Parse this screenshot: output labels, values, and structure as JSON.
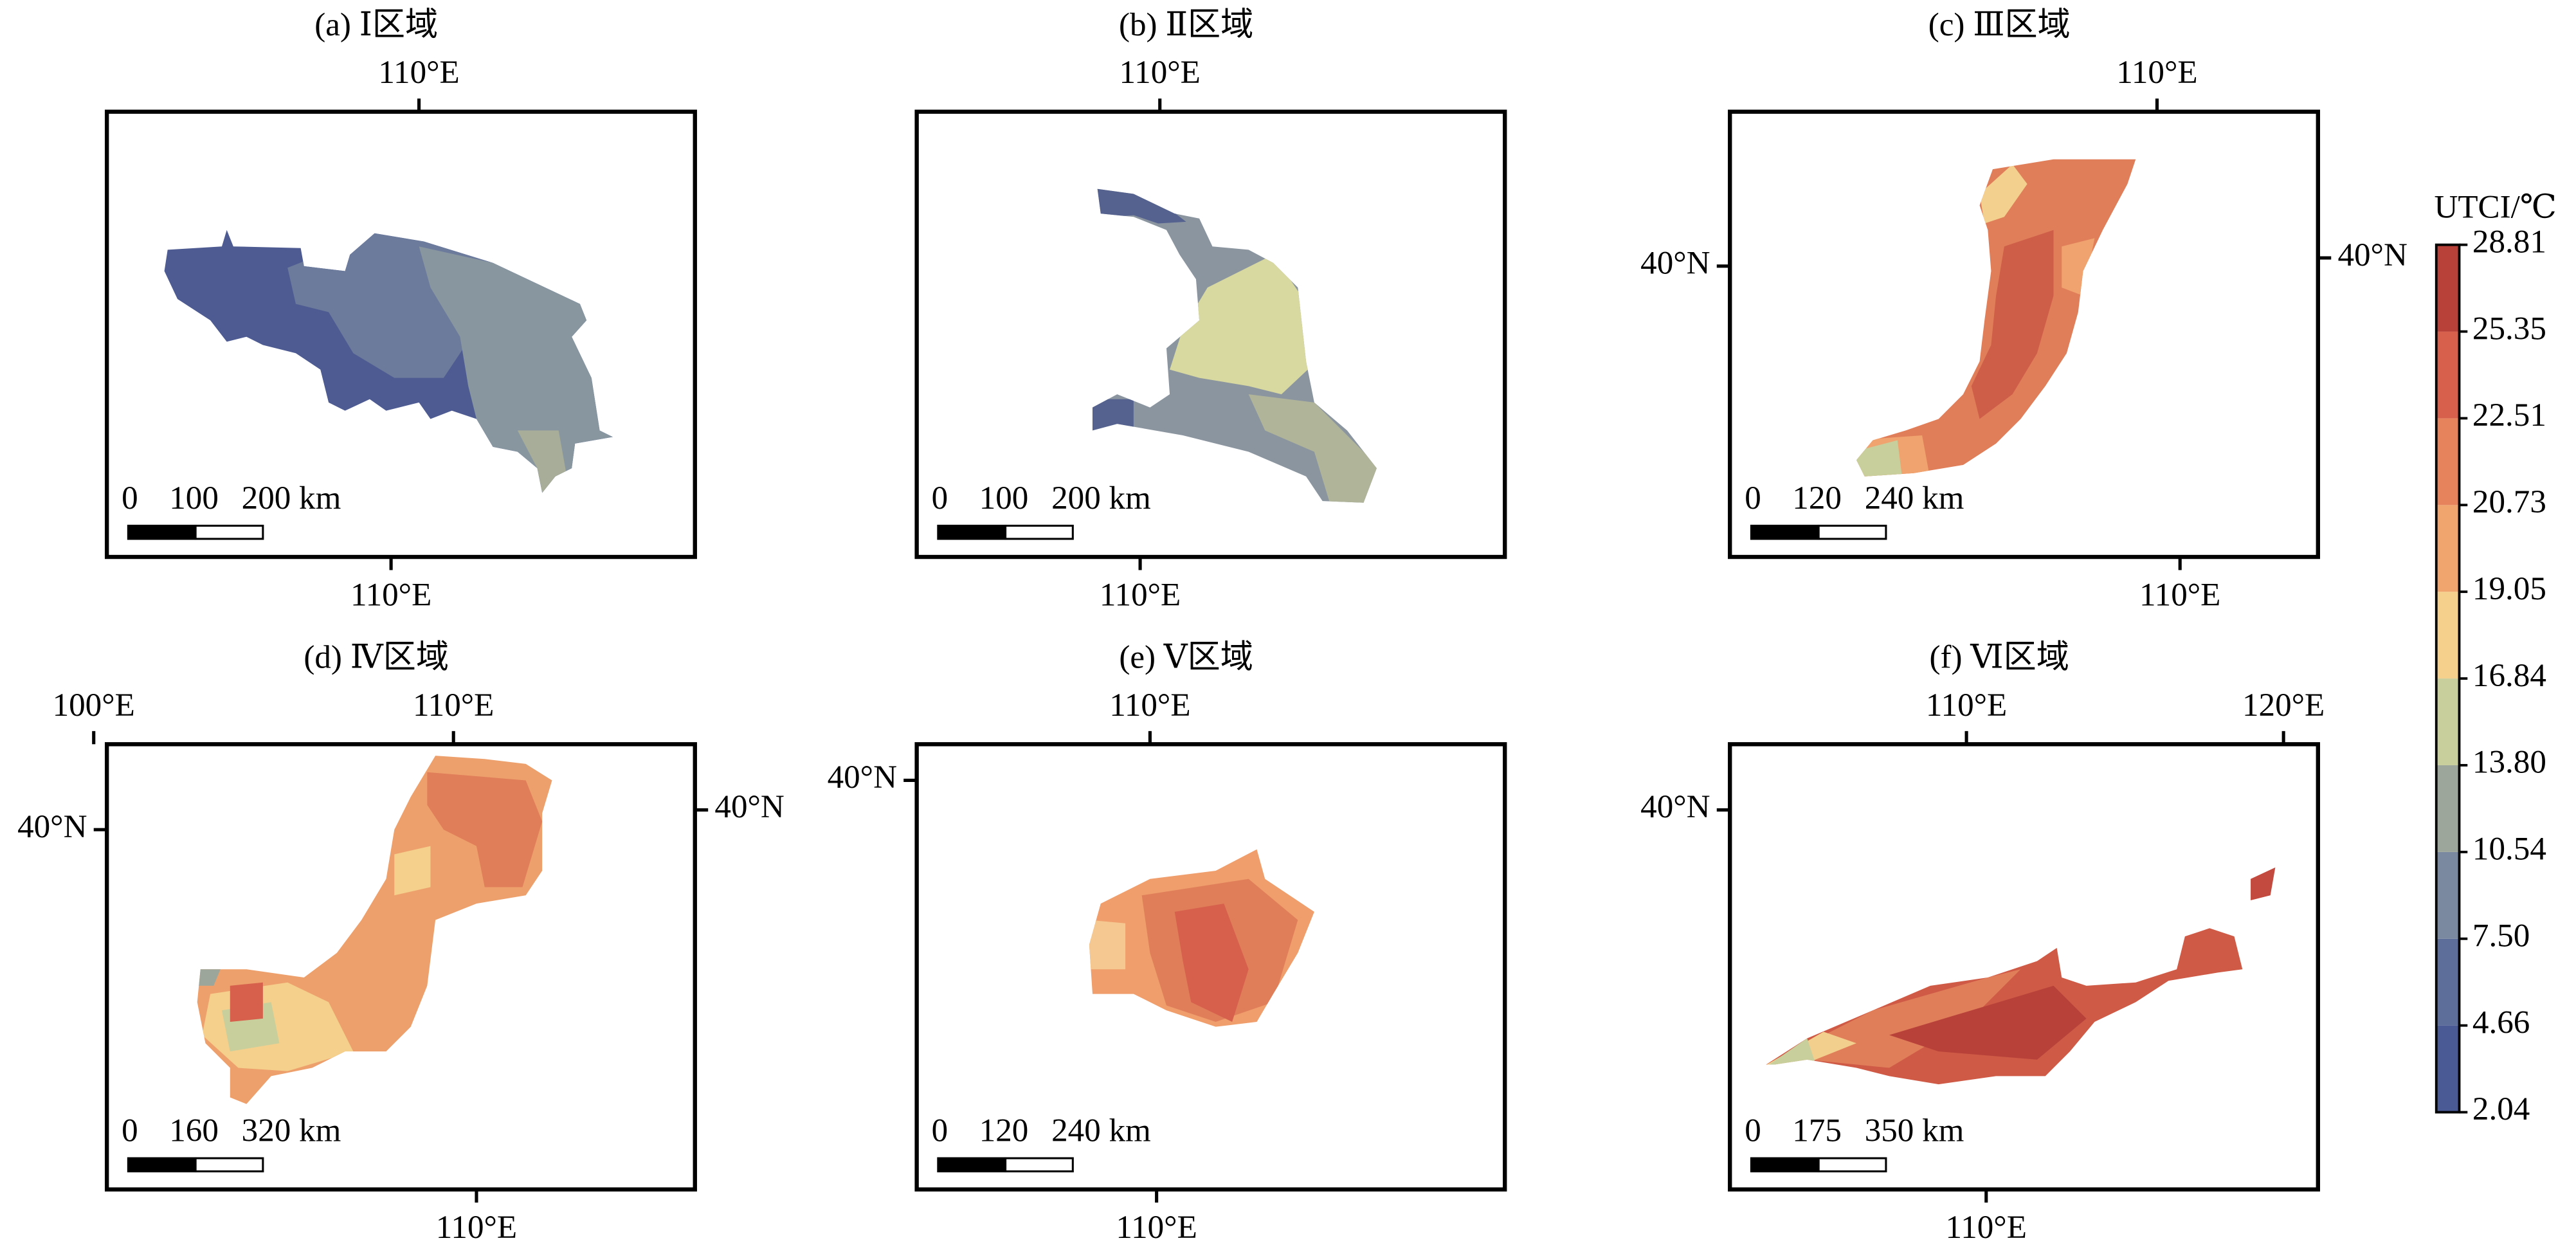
{
  "panels": [
    {
      "title": "(a) Ⅰ区域",
      "top_labels": [
        "110°E"
      ],
      "bottom_labels": [
        "110°E"
      ],
      "scale_labels": [
        "0",
        "100",
        "200 km"
      ]
    },
    {
      "title": "(b) Ⅱ区域",
      "top_labels": [
        "110°E"
      ],
      "bottom_labels": [
        "110°E"
      ],
      "scale_labels": [
        "0",
        "100",
        "200 km"
      ]
    },
    {
      "title": "(c) Ⅲ区域",
      "top_labels": [
        "110°E"
      ],
      "bottom_labels": [
        "110°E"
      ],
      "left_labels": [
        "40°N"
      ],
      "right_labels": [
        "40°N"
      ],
      "scale_labels": [
        "0",
        "120",
        "240 km"
      ]
    },
    {
      "title": "(d) Ⅳ区域",
      "top_labels": [
        "100°E",
        "110°E"
      ],
      "bottom_labels": [
        "110°E"
      ],
      "left_labels": [
        "40°N"
      ],
      "right_labels": [
        "40°N"
      ],
      "scale_labels": [
        "0",
        "160",
        "320 km"
      ]
    },
    {
      "title": "(e) Ⅴ区域",
      "top_labels": [
        "110°E"
      ],
      "bottom_labels": [
        "110°E"
      ],
      "left_labels": [
        "40°N"
      ],
      "scale_labels": [
        "0",
        "120",
        "240 km"
      ]
    },
    {
      "title": "(f) Ⅵ区域",
      "top_labels": [
        "110°E",
        "120°E"
      ],
      "bottom_labels": [
        "110°E"
      ],
      "left_labels": [
        "40°N"
      ],
      "scale_labels": [
        "0",
        "175",
        "350 km"
      ]
    }
  ],
  "colorbar": {
    "title": "UTCI/℃",
    "ticks": [
      2.04,
      4.66,
      {
        "value": 7.5,
        "label": "7.50"
      },
      10.54,
      {
        "value": 13.8,
        "label": "13.80"
      },
      16.84,
      19.05,
      20.73,
      22.51,
      25.35,
      28.81
    ],
    "colors": [
      "#4a5a94",
      "#5e6e9a",
      "#7a89a0",
      "#9da69a",
      "#c9cf9c",
      "#f5d08c",
      "#f0a46e",
      "#e6825c",
      "#d6604c",
      "#b8413a"
    ]
  }
}
